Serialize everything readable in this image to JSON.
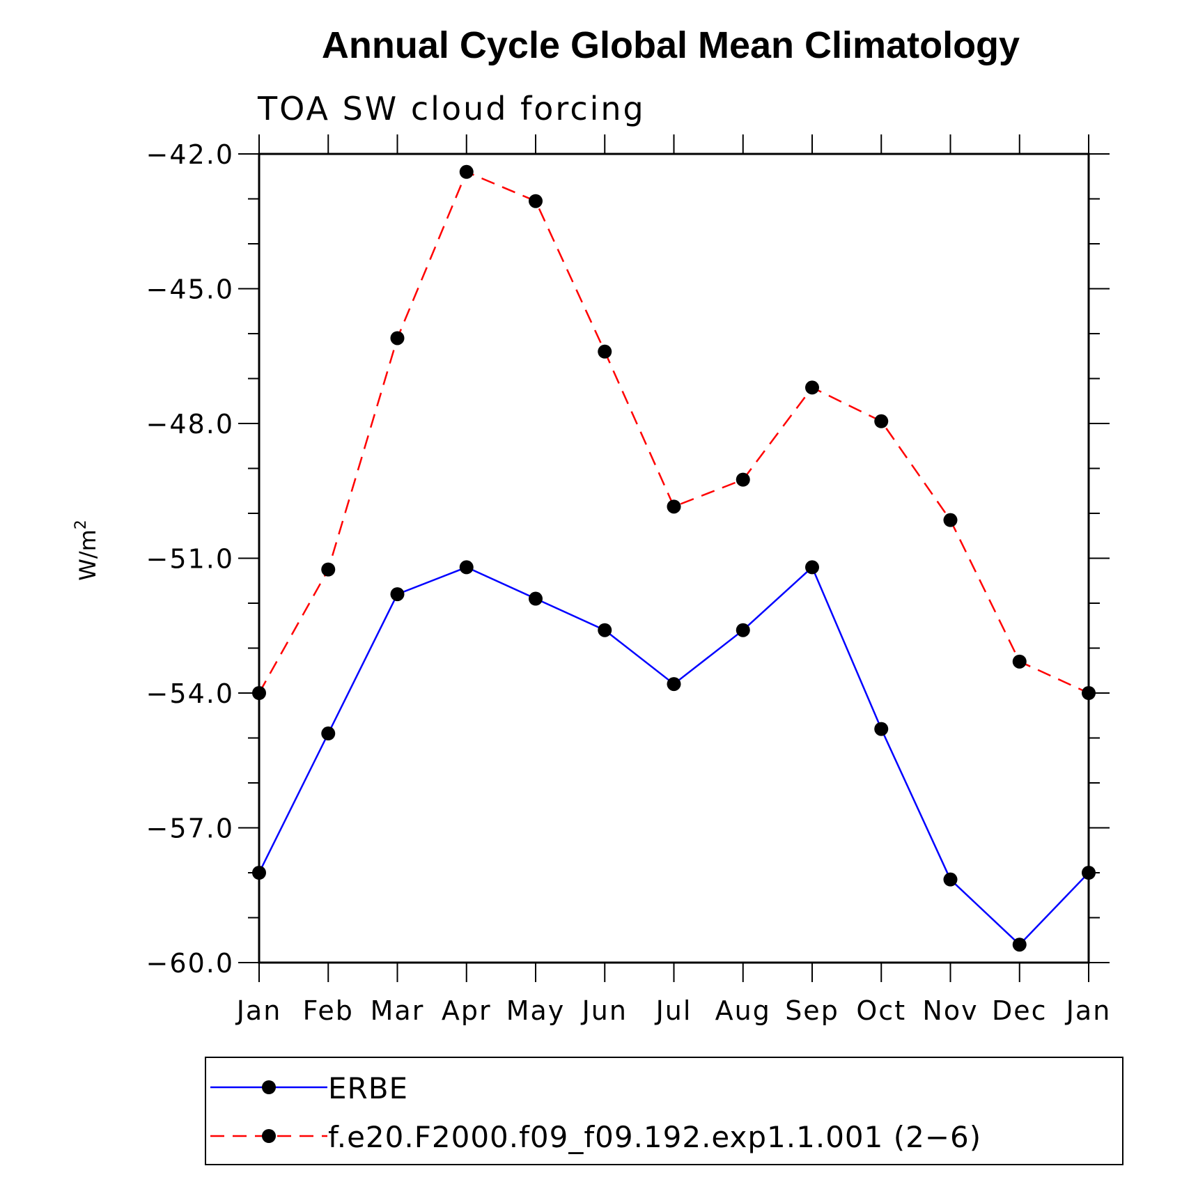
{
  "chart_data": {
    "type": "line",
    "title": "Annual Cycle Global Mean Climatology",
    "subtitle": "TOA SW cloud forcing",
    "ylabel": "W/m",
    "ylabel_sup": "2",
    "xlabel": "",
    "categories": [
      "Jan",
      "Feb",
      "Mar",
      "Apr",
      "May",
      "Jun",
      "Jul",
      "Aug",
      "Sep",
      "Oct",
      "Nov",
      "Dec",
      "Jan"
    ],
    "ylim": [
      -60.0,
      -42.0
    ],
    "yticks": [
      -42.0,
      -45.0,
      -48.0,
      -51.0,
      -54.0,
      -57.0,
      -60.0
    ],
    "ytick_labels": [
      "−42.0",
      "−45.0",
      "−48.0",
      "−51.0",
      "−54.0",
      "−57.0",
      "−60.0"
    ],
    "minor_step": 1.0,
    "series": [
      {
        "name": "ERBE",
        "color": "#0000ff",
        "dash": "solid",
        "marker": "circle",
        "values": [
          -58.0,
          -54.9,
          -51.8,
          -51.2,
          -51.9,
          -52.6,
          -53.8,
          -52.6,
          -51.2,
          -54.8,
          -58.15,
          -59.6,
          -58.0
        ]
      },
      {
        "name": "f.e20.F2000.f09_f09.192.exp1.1.001 (2−6)",
        "color": "#ff0000",
        "dash": "dashed",
        "marker": "circle",
        "values": [
          -54.0,
          -51.25,
          -46.1,
          -42.4,
          -43.05,
          -46.4,
          -49.85,
          -49.25,
          -47.2,
          -47.95,
          -50.15,
          -53.3,
          -54.0
        ]
      }
    ],
    "legend_position": "bottom"
  }
}
